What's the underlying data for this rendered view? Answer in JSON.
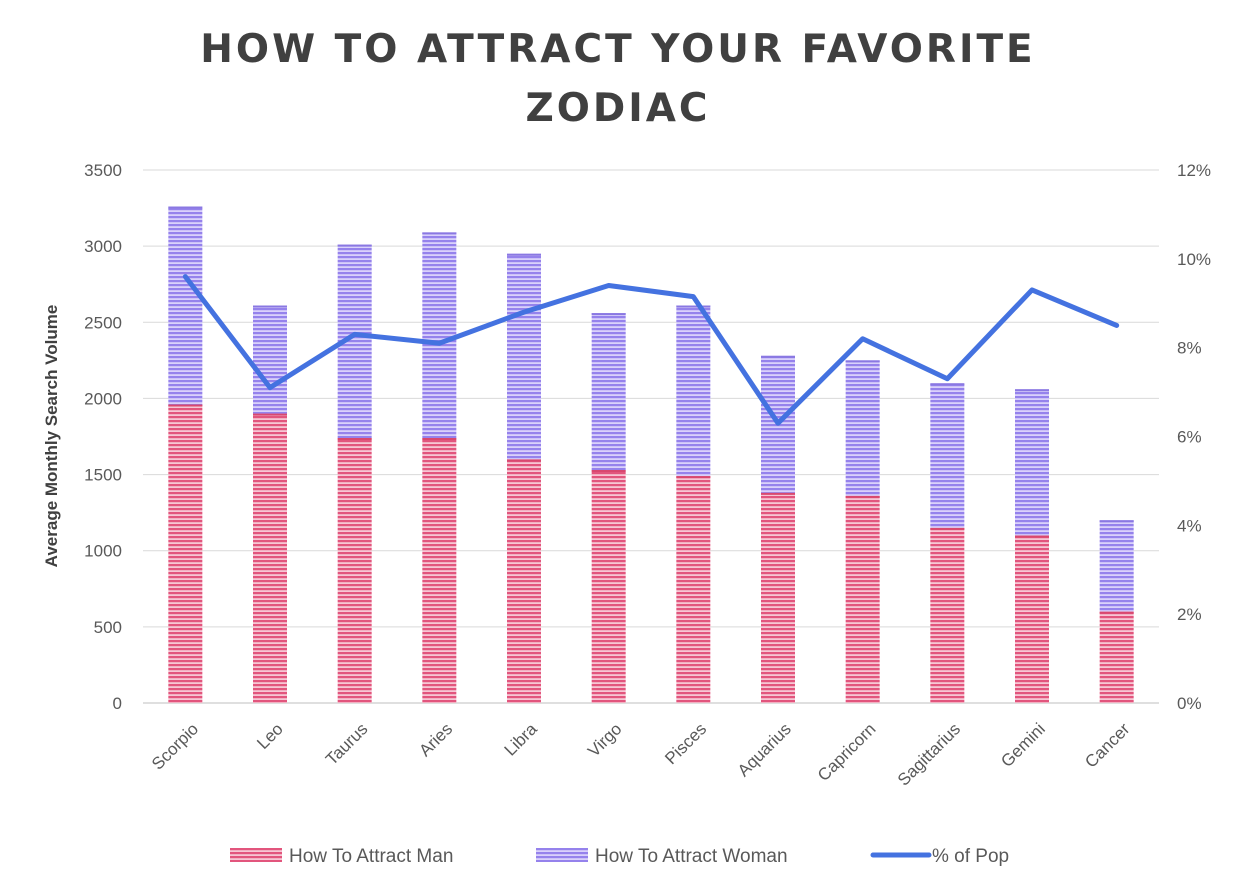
{
  "chart_data": {
    "type": "bar",
    "title_lines": [
      "HOW TO ATTRACT YOUR FAVORITE",
      "ZODIAC"
    ],
    "ylabel": "Average Monthly Search Volume",
    "y2label": "",
    "xlabel": "",
    "categories": [
      "Scorpio",
      "Leo",
      "Taurus",
      "Aries",
      "Libra",
      "Virgo",
      "Pisces",
      "Aquarius",
      "Capricorn",
      "Sagittarius",
      "Gemini",
      "Cancer"
    ],
    "series": [
      {
        "name": "How To Attract Man",
        "kind": "stacked-bar",
        "color": "#e8557e",
        "values": [
          1960,
          1900,
          1740,
          1740,
          1600,
          1530,
          1490,
          1380,
          1360,
          1150,
          1100,
          600
        ]
      },
      {
        "name": "How To Attract Woman",
        "kind": "stacked-bar",
        "color": "#9a86ee",
        "values": [
          1300,
          710,
          1270,
          1350,
          1350,
          1030,
          1120,
          900,
          890,
          950,
          960,
          600
        ]
      },
      {
        "name": "% of Pop",
        "kind": "line",
        "axis": "right",
        "color": "#4472e0",
        "values": [
          9.6,
          7.1,
          8.3,
          8.1,
          8.8,
          9.4,
          9.15,
          6.3,
          8.2,
          7.3,
          9.3,
          8.5
        ]
      }
    ],
    "ylim": [
      0,
      3500
    ],
    "y_ticks": [
      "0",
      "500",
      "1000",
      "1500",
      "2000",
      "2500",
      "3000",
      "3500"
    ],
    "y2lim": [
      0,
      12
    ],
    "y2_ticks": [
      "0%",
      "2%",
      "4%",
      "6%",
      "8%",
      "10%",
      "12%"
    ],
    "grid": true,
    "legend_placement": "bottom"
  }
}
